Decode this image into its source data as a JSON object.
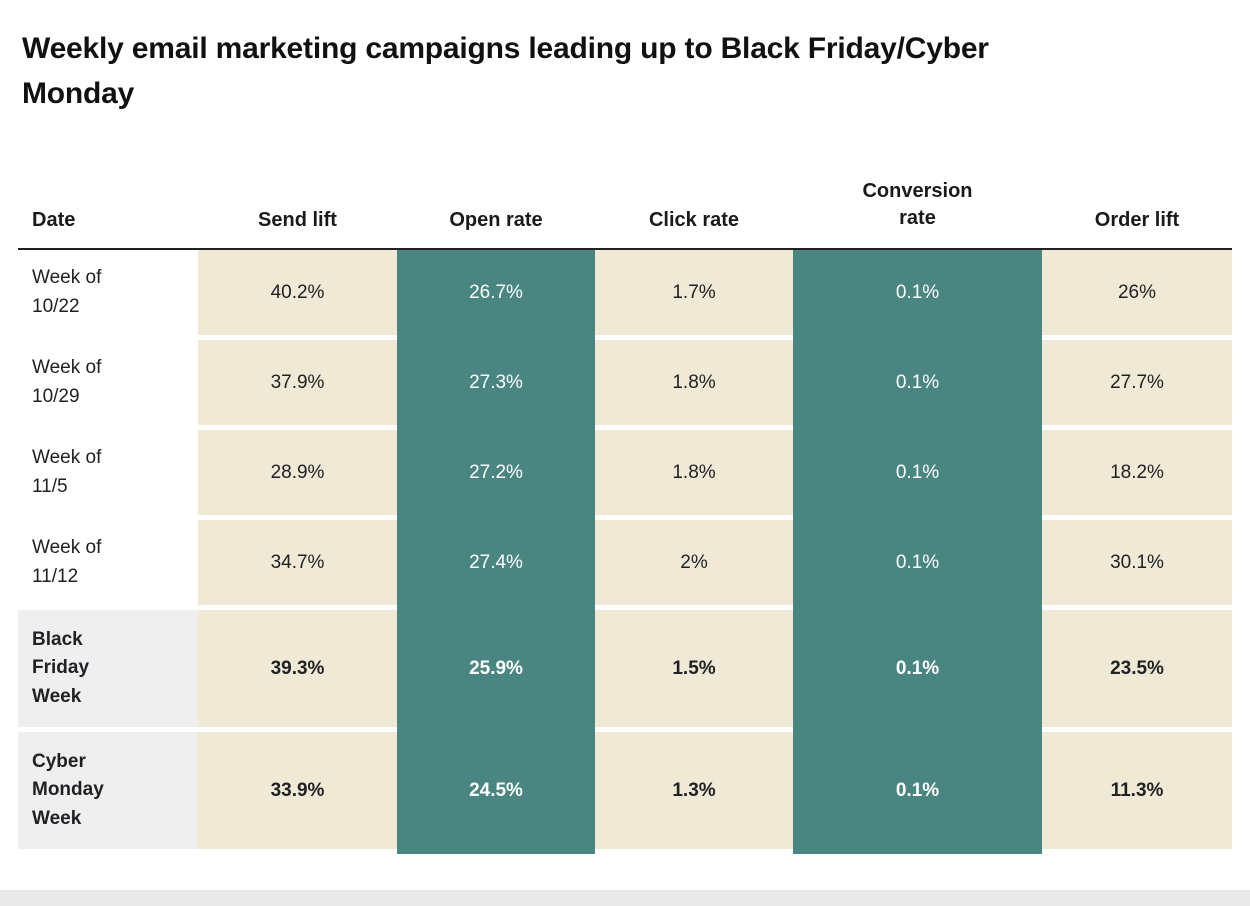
{
  "title": "Weekly email marketing campaigns leading up to Black Friday/Cyber Monday",
  "table": {
    "headers": [
      "Date",
      "Send lift",
      "Open rate",
      "Click rate",
      "Conversion rate",
      "Order lift"
    ],
    "rows": [
      {
        "label": "Week of 10/22",
        "bold": false,
        "values": [
          "40.2%",
          "26.7%",
          "1.7%",
          "0.1%",
          "26%"
        ]
      },
      {
        "label": "Week of 10/29",
        "bold": false,
        "values": [
          "37.9%",
          "27.3%",
          "1.8%",
          "0.1%",
          "27.7%"
        ]
      },
      {
        "label": "Week of 11/5",
        "bold": false,
        "values": [
          "28.9%",
          "27.2%",
          "1.8%",
          "0.1%",
          "18.2%"
        ]
      },
      {
        "label": "Week of 11/12",
        "bold": false,
        "values": [
          "34.7%",
          "27.4%",
          "2%",
          "0.1%",
          "30.1%"
        ]
      },
      {
        "label": "Black Friday Week",
        "bold": true,
        "values": [
          "39.3%",
          "25.9%",
          "1.5%",
          "0.1%",
          "23.5%"
        ]
      },
      {
        "label": "Cyber Monday Week",
        "bold": true,
        "values": [
          "33.9%",
          "24.5%",
          "1.3%",
          "0.1%",
          "11.3%"
        ]
      }
    ]
  },
  "colors": {
    "beige_column": "#f0e9d6",
    "teal_column": "#4a8681",
    "teal_text": "#ffffff",
    "highlight_row": "#efefef",
    "header_rule": "#212121",
    "bottom_strip": "#e9e9e9"
  },
  "chart_data": {
    "type": "table",
    "title": "Weekly email marketing campaigns leading up to Black Friday/Cyber Monday",
    "categories": [
      "Week of 10/22",
      "Week of 10/29",
      "Week of 11/5",
      "Week of 11/12",
      "Black Friday Week",
      "Cyber Monday Week"
    ],
    "series": [
      {
        "name": "Send lift",
        "values": [
          40.2,
          37.9,
          28.9,
          34.7,
          39.3,
          33.9
        ]
      },
      {
        "name": "Open rate",
        "values": [
          26.7,
          27.3,
          27.2,
          27.4,
          25.9,
          24.5
        ]
      },
      {
        "name": "Click rate",
        "values": [
          1.7,
          1.8,
          1.8,
          2,
          1.5,
          1.3
        ]
      },
      {
        "name": "Conversion rate",
        "values": [
          0.1,
          0.1,
          0.1,
          0.1,
          0.1,
          0.1
        ]
      },
      {
        "name": "Order lift",
        "values": [
          26,
          27.7,
          18.2,
          30.1,
          23.5,
          11.3
        ]
      }
    ],
    "unit": "%",
    "layout": {
      "grid": false,
      "legend": "none",
      "highlighted_rows": [
        "Black Friday Week",
        "Cyber Monday Week"
      ]
    }
  }
}
